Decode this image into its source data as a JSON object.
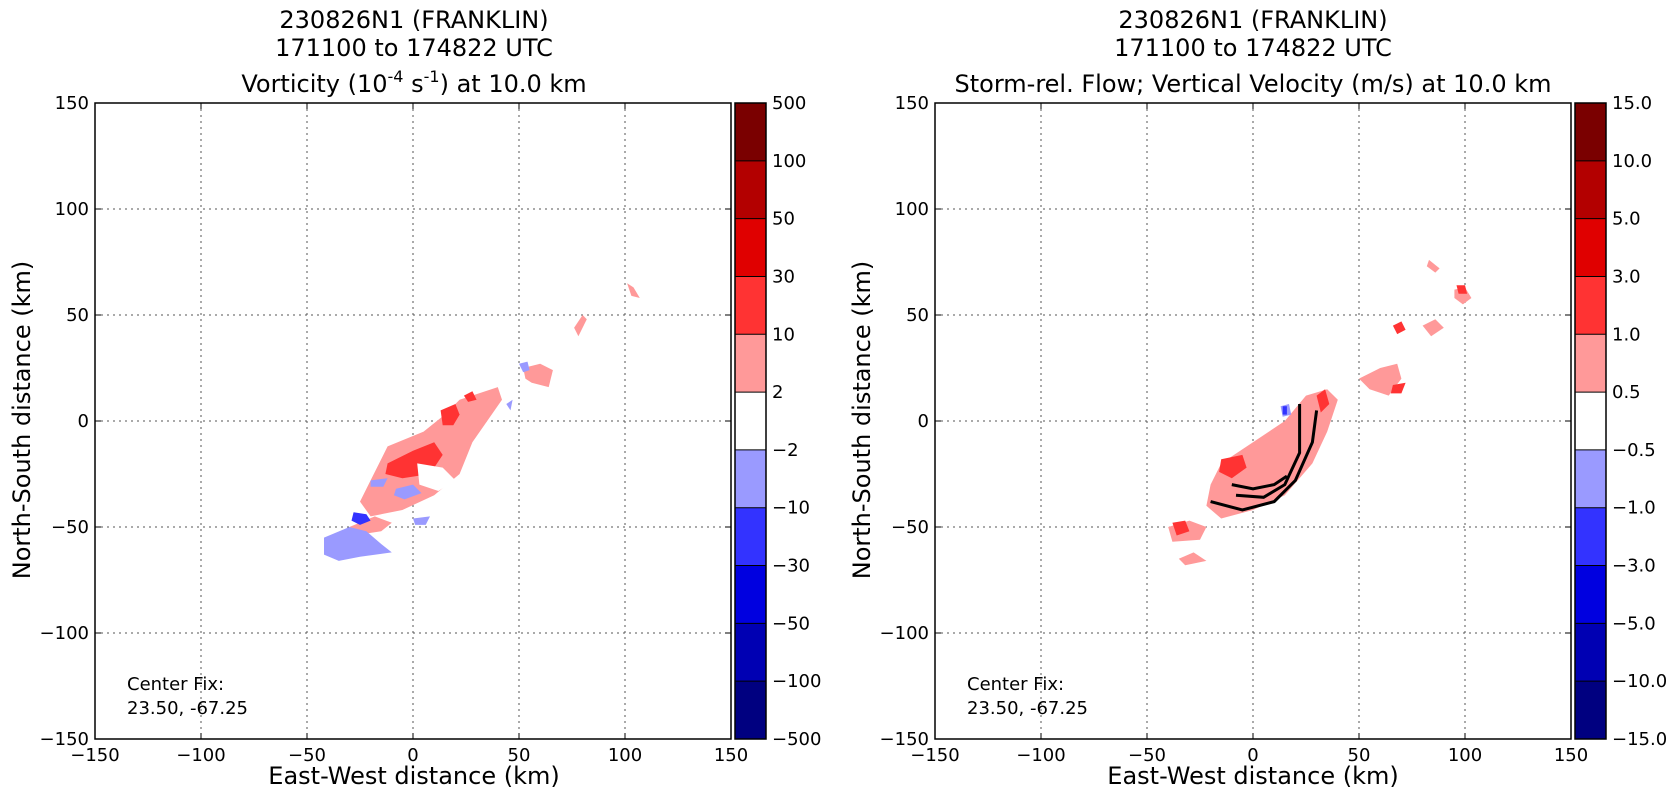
{
  "chart_data": [
    {
      "type": "heatmap",
      "title_lines": [
        "230826N1 (FRANKLIN)",
        "171100 to 174822 UTC"
      ],
      "title_line3": {
        "pre": "Vorticity (10",
        "sup1": "-4",
        "mid": " s",
        "sup2": "-1",
        "post": ") at 10.0 km"
      },
      "xlabel": "East-West distance (km)",
      "ylabel": "North-South distance (km)",
      "xlim": [
        -150,
        150
      ],
      "ylim": [
        -150,
        150
      ],
      "xticks": [
        -150,
        -100,
        -50,
        0,
        50,
        100,
        150
      ],
      "yticks": [
        -150,
        -100,
        -50,
        0,
        50,
        100,
        150
      ],
      "xtick_labels": [
        "−150",
        "−100",
        "−50",
        "0",
        "50",
        "100",
        "150"
      ],
      "ytick_labels": [
        "−150",
        "−100",
        "−50",
        "0",
        "50",
        "100",
        "150"
      ],
      "grid": true,
      "annotation": [
        "Center Fix:",
        "23.50, -67.25"
      ],
      "colorbar": {
        "labels": [
          "500",
          "100",
          "50",
          "30",
          "10",
          "2",
          "−2",
          "−10",
          "−30",
          "−50",
          "−100",
          "−500"
        ],
        "colors": [
          "#7a0000",
          "#b30000",
          "#e00000",
          "#ff3333",
          "#ff9999",
          "#ffffff",
          "#9a9aff",
          "#3333ff",
          "#0000e0",
          "#0000b3",
          "#000080"
        ]
      },
      "regions": [
        {
          "level": "2 to 10",
          "color": "#ff9999",
          "points": [
            [
              -12,
              -12
            ],
            [
              5,
              -5
            ],
            [
              15,
              3
            ],
            [
              22,
              10
            ],
            [
              40,
              16
            ],
            [
              42,
              10
            ],
            [
              35,
              0
            ],
            [
              28,
              -10
            ],
            [
              22,
              -25
            ],
            [
              10,
              -35
            ],
            [
              -5,
              -42
            ],
            [
              -20,
              -45
            ],
            [
              -25,
              -38
            ],
            [
              -20,
              -28
            ]
          ]
        },
        {
          "level": "2 to 10",
          "color": "#ff9999",
          "points": [
            [
              -30,
              -50
            ],
            [
              -18,
              -45
            ],
            [
              -10,
              -48
            ],
            [
              -15,
              -52
            ],
            [
              -28,
              -54
            ]
          ]
        },
        {
          "level": "2 to 10",
          "color": "#ff9999",
          "points": [
            [
              52,
              25
            ],
            [
              60,
              27
            ],
            [
              66,
              24
            ],
            [
              64,
              16
            ],
            [
              56,
              18
            ],
            [
              53,
              20
            ]
          ]
        },
        {
          "level": "2 to 10",
          "color": "#ff9999",
          "points": [
            [
              76,
              44
            ],
            [
              80,
              50
            ],
            [
              82,
              48
            ],
            [
              78,
              40
            ]
          ]
        },
        {
          "level": "2 to 10",
          "color": "#ff9999",
          "points": [
            [
              101,
              65
            ],
            [
              104,
              63
            ],
            [
              107,
              58
            ],
            [
              103,
              59
            ]
          ]
        },
        {
          "level": "10 to 30",
          "color": "#ff3333",
          "points": [
            [
              -12,
              -20
            ],
            [
              0,
              -14
            ],
            [
              10,
              -10
            ],
            [
              14,
              -16
            ],
            [
              8,
              -25
            ],
            [
              -5,
              -27
            ],
            [
              -13,
              -25
            ]
          ]
        },
        {
          "level": "10 to 30",
          "color": "#ff3333",
          "points": [
            [
              13,
              5
            ],
            [
              20,
              8
            ],
            [
              22,
              3
            ],
            [
              19,
              -2
            ],
            [
              14,
              -2
            ]
          ]
        },
        {
          "level": "10 to 30",
          "color": "#ff3333",
          "points": [
            [
              24,
              12
            ],
            [
              28,
              14
            ],
            [
              30,
              10
            ],
            [
              26,
              9
            ]
          ]
        },
        {
          "level": "white",
          "color": "#ffffff",
          "points": [
            [
              2,
              -20
            ],
            [
              14,
              -22
            ],
            [
              20,
              -28
            ],
            [
              12,
              -33
            ],
            [
              3,
              -30
            ]
          ]
        },
        {
          "level": "-10 to -2",
          "color": "#9a9aff",
          "points": [
            [
              -42,
              -55
            ],
            [
              -30,
              -50
            ],
            [
              -22,
              -52
            ],
            [
              -15,
              -58
            ],
            [
              -10,
              -62
            ],
            [
              -25,
              -64
            ],
            [
              -35,
              -66
            ],
            [
              -42,
              -63
            ]
          ]
        },
        {
          "level": "-10 to -2",
          "color": "#9a9aff",
          "points": [
            [
              -8,
              -32
            ],
            [
              0,
              -30
            ],
            [
              4,
              -34
            ],
            [
              -4,
              -37
            ],
            [
              -9,
              -35
            ]
          ]
        },
        {
          "level": "-10 to -2",
          "color": "#9a9aff",
          "points": [
            [
              -20,
              -28
            ],
            [
              -12,
              -27
            ],
            [
              -14,
              -31
            ],
            [
              -20,
              -31
            ]
          ]
        },
        {
          "level": "-10 to -2",
          "color": "#9a9aff",
          "points": [
            [
              50,
              27
            ],
            [
              54,
              28
            ],
            [
              55,
              24
            ],
            [
              52,
              23
            ]
          ]
        },
        {
          "level": "-10 to -2",
          "color": "#9a9aff",
          "points": [
            [
              44,
              8
            ],
            [
              47,
              10
            ],
            [
              46,
              5
            ]
          ]
        },
        {
          "level": "-10 to -2",
          "color": "#9a9aff",
          "points": [
            [
              0,
              -46
            ],
            [
              8,
              -45
            ],
            [
              6,
              -49
            ],
            [
              1,
              -49
            ]
          ]
        },
        {
          "level": "-30 to -10",
          "color": "#3333ff",
          "points": [
            [
              -28,
              -43
            ],
            [
              -22,
              -44
            ],
            [
              -20,
              -47
            ],
            [
              -25,
              -49
            ],
            [
              -29,
              -47
            ]
          ]
        }
      ],
      "streamlines": []
    },
    {
      "type": "heatmap",
      "title_lines": [
        "230826N1 (FRANKLIN)",
        "171100 to 174822 UTC",
        "Storm-rel. Flow; Vertical Velocity (m/s) at 10.0 km"
      ],
      "xlabel": "East-West distance (km)",
      "ylabel": "North-South distance (km)",
      "xlim": [
        -150,
        150
      ],
      "ylim": [
        -150,
        150
      ],
      "xticks": [
        -150,
        -100,
        -50,
        0,
        50,
        100,
        150
      ],
      "yticks": [
        -150,
        -100,
        -50,
        0,
        50,
        100,
        150
      ],
      "xtick_labels": [
        "−150",
        "−100",
        "−50",
        "0",
        "50",
        "100",
        "150"
      ],
      "ytick_labels": [
        "−150",
        "−100",
        "−50",
        "0",
        "50",
        "100",
        "150"
      ],
      "grid": true,
      "annotation": [
        "Center Fix:",
        "23.50, -67.25"
      ],
      "colorbar": {
        "labels": [
          "15.0",
          "10.0",
          "5.0",
          "3.0",
          "1.0",
          "0.5",
          "−0.5",
          "−1.0",
          "−3.0",
          "−5.0",
          "−10.0",
          "−15.0"
        ],
        "colors": [
          "#7a0000",
          "#b30000",
          "#e00000",
          "#ff3333",
          "#ff9999",
          "#ffffff",
          "#9a9aff",
          "#3333ff",
          "#0000e0",
          "#0000b3",
          "#000080"
        ]
      },
      "regions": [
        {
          "level": "0.5 to 1.0",
          "color": "#ff9999",
          "points": [
            [
              -15,
              -20
            ],
            [
              0,
              -10
            ],
            [
              15,
              0
            ],
            [
              25,
              12
            ],
            [
              35,
              15
            ],
            [
              40,
              10
            ],
            [
              35,
              -5
            ],
            [
              28,
              -20
            ],
            [
              15,
              -35
            ],
            [
              0,
              -42
            ],
            [
              -15,
              -46
            ],
            [
              -22,
              -40
            ],
            [
              -20,
              -30
            ]
          ]
        },
        {
          "level": "0.5 to 1.0",
          "color": "#ff9999",
          "points": [
            [
              -40,
              -50
            ],
            [
              -30,
              -47
            ],
            [
              -22,
              -50
            ],
            [
              -25,
              -56
            ],
            [
              -38,
              -57
            ]
          ]
        },
        {
          "level": "0.5 to 1.0",
          "color": "#ff9999",
          "points": [
            [
              50,
              20
            ],
            [
              60,
              25
            ],
            [
              68,
              27
            ],
            [
              70,
              20
            ],
            [
              64,
              12
            ],
            [
              55,
              15
            ]
          ]
        },
        {
          "level": "0.5 to 1.0",
          "color": "#ff9999",
          "points": [
            [
              80,
              45
            ],
            [
              86,
              48
            ],
            [
              90,
              44
            ],
            [
              84,
              40
            ]
          ]
        },
        {
          "level": "0.5 to 1.0",
          "color": "#ff9999",
          "points": [
            [
              95,
              62
            ],
            [
              100,
              63
            ],
            [
              103,
              58
            ],
            [
              99,
              55
            ],
            [
              95,
              58
            ]
          ]
        },
        {
          "level": "0.5 to 1.0",
          "color": "#ff9999",
          "points": [
            [
              83,
              76
            ],
            [
              88,
              72
            ],
            [
              86,
              70
            ],
            [
              82,
              73
            ]
          ]
        },
        {
          "level": "0.5 to 1.0",
          "color": "#ff9999",
          "points": [
            [
              -35,
              -65
            ],
            [
              -28,
              -62
            ],
            [
              -22,
              -66
            ],
            [
              -32,
              -68
            ]
          ]
        },
        {
          "level": "1.0 to 3.0",
          "color": "#ff3333",
          "points": [
            [
              -15,
              -18
            ],
            [
              -5,
              -16
            ],
            [
              -3,
              -22
            ],
            [
              -10,
              -27
            ],
            [
              -16,
              -24
            ]
          ]
        },
        {
          "level": "1.0 to 3.0",
          "color": "#ff3333",
          "points": [
            [
              30,
              12
            ],
            [
              34,
              15
            ],
            [
              36,
              8
            ],
            [
              32,
              4
            ]
          ]
        },
        {
          "level": "1.0 to 3.0",
          "color": "#ff3333",
          "points": [
            [
              -38,
              -48
            ],
            [
              -32,
              -47
            ],
            [
              -30,
              -52
            ],
            [
              -36,
              -54
            ]
          ]
        },
        {
          "level": "1.0 to 3.0",
          "color": "#ff3333",
          "points": [
            [
              66,
              17
            ],
            [
              72,
              18
            ],
            [
              70,
              13
            ],
            [
              65,
              13
            ]
          ]
        },
        {
          "level": "1.0 to 3.0",
          "color": "#ff3333",
          "points": [
            [
              66,
              45
            ],
            [
              70,
              47
            ],
            [
              72,
              43
            ],
            [
              68,
              41
            ]
          ]
        },
        {
          "level": "1.0 to 3.0",
          "color": "#ff3333",
          "points": [
            [
              96,
              64
            ],
            [
              100,
              64
            ],
            [
              101,
              60
            ],
            [
              97,
              60
            ]
          ]
        },
        {
          "level": "-1.0 to -0.5",
          "color": "#9a9aff",
          "points": [
            [
              13,
              7
            ],
            [
              17,
              8
            ],
            [
              18,
              3
            ],
            [
              14,
              2
            ]
          ]
        },
        {
          "level": "-3.0 to -1.0",
          "color": "#3333ff",
          "points": [
            [
              14,
              7
            ],
            [
              16,
              7
            ],
            [
              16,
              3
            ],
            [
              14,
              3
            ]
          ]
        }
      ],
      "streamlines": [
        [
          [
            -10,
            -30
          ],
          [
            0,
            -32
          ],
          [
            10,
            -30
          ],
          [
            16,
            -26
          ]
        ],
        [
          [
            -20,
            -38
          ],
          [
            -5,
            -42
          ],
          [
            10,
            -38
          ],
          [
            20,
            -28
          ],
          [
            28,
            -10
          ],
          [
            30,
            5
          ]
        ],
        [
          [
            -8,
            -35
          ],
          [
            5,
            -36
          ],
          [
            15,
            -30
          ],
          [
            22,
            -15
          ],
          [
            22,
            8
          ]
        ]
      ]
    }
  ]
}
